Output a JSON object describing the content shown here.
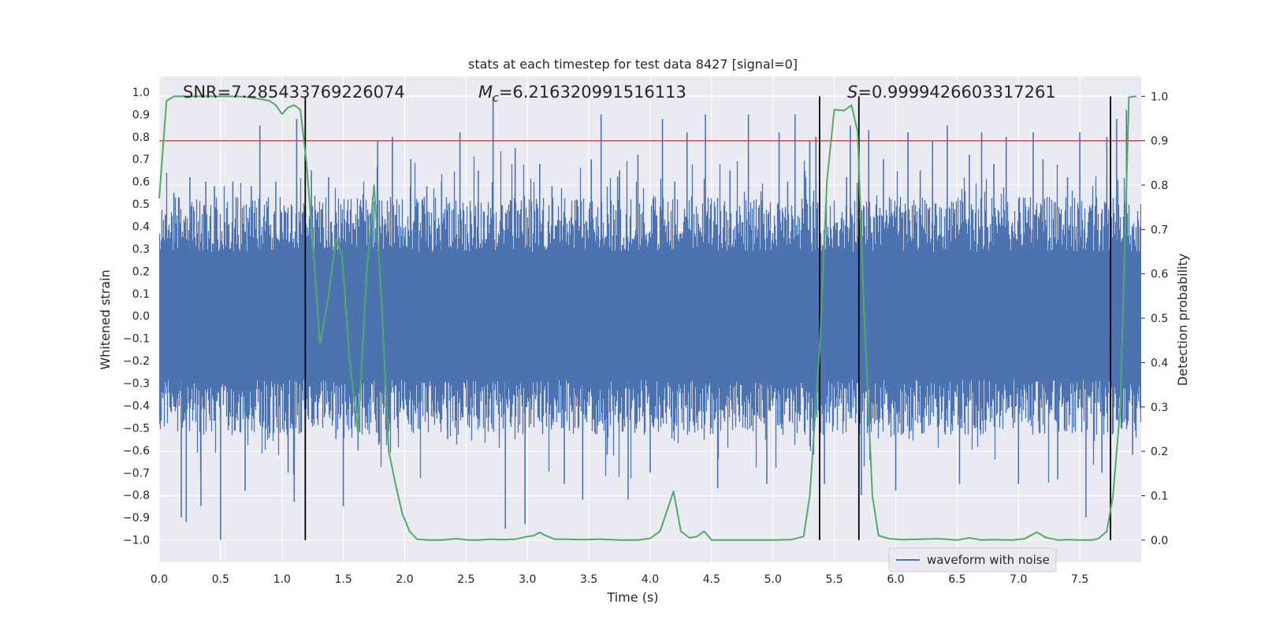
{
  "chart_data": {
    "type": "line",
    "title": "stats at each timestep for test data 8427 [signal=0]",
    "xlabel": "Time (s)",
    "ylabel_left": "Whitened strain",
    "ylabel_right": "Detection probability",
    "xlim": [
      0.0,
      8.0
    ],
    "ylim_left": [
      -1.1,
      1.07
    ],
    "ylim_right": [
      -0.05,
      1.045
    ],
    "xticks": [
      "0.0",
      "0.5",
      "1.0",
      "1.5",
      "2.0",
      "2.5",
      "3.0",
      "3.5",
      "4.0",
      "4.5",
      "5.0",
      "5.5",
      "6.0",
      "6.5",
      "7.0",
      "7.5"
    ],
    "yticks_left": [
      "1.0",
      "0.9",
      "0.8",
      "0.7",
      "0.6",
      "0.5",
      "0.4",
      "0.3",
      "0.2",
      "0.1",
      "0.0",
      "-0.1",
      "-0.2",
      "-0.3",
      "-0.4",
      "-0.5",
      "-0.6",
      "-0.7",
      "-0.8",
      "-0.9",
      "-1.0"
    ],
    "yticks_right": [
      "1.0",
      "0.9",
      "0.8",
      "0.7",
      "0.6",
      "0.5",
      "0.4",
      "0.3",
      "0.2",
      "0.1",
      "0.0"
    ],
    "grid": true,
    "annotations": {
      "snr": "SNR=7.285433769226074",
      "mc_symbol": "M",
      "mc_sub": "c",
      "mc_value": "=6.216320991516113",
      "s_symbol": "S",
      "s_value": "=0.9999426603317261"
    },
    "legend": {
      "label": "waveform with noise",
      "location": "lower-right"
    },
    "waveform": {
      "name": "waveform with noise",
      "color": "#4c72b0",
      "duration": 8.0,
      "core_amplitude": 0.38,
      "spikes": [
        {
          "t": 0.05,
          "v": 0.45
        },
        {
          "t": 0.12,
          "v": 0.55
        },
        {
          "t": 0.18,
          "v": -0.9
        },
        {
          "t": 0.22,
          "v": -0.92
        },
        {
          "t": 0.25,
          "v": 0.62
        },
        {
          "t": 0.34,
          "v": -0.85
        },
        {
          "t": 0.38,
          "v": 0.6
        },
        {
          "t": 0.45,
          "v": 0.58
        },
        {
          "t": 0.5,
          "v": -1.0
        },
        {
          "t": 0.6,
          "v": 0.6
        },
        {
          "t": 0.7,
          "v": -0.78
        },
        {
          "t": 0.75,
          "v": 0.58
        },
        {
          "t": 0.82,
          "v": 0.85
        },
        {
          "t": 0.95,
          "v": 0.6
        },
        {
          "t": 1.05,
          "v": -0.7
        },
        {
          "t": 1.1,
          "v": -0.83
        },
        {
          "t": 1.12,
          "v": 0.88
        },
        {
          "t": 1.24,
          "v": 0.65
        },
        {
          "t": 1.38,
          "v": 0.62
        },
        {
          "t": 1.44,
          "v": -0.55
        },
        {
          "t": 1.5,
          "v": -0.85
        },
        {
          "t": 1.62,
          "v": -0.6
        },
        {
          "t": 1.78,
          "v": 0.78
        },
        {
          "t": 1.9,
          "v": 0.8
        },
        {
          "t": 2.05,
          "v": 0.7
        },
        {
          "t": 2.18,
          "v": 0.58
        },
        {
          "t": 2.3,
          "v": 0.6
        },
        {
          "t": 2.35,
          "v": -0.55
        },
        {
          "t": 2.45,
          "v": 0.82
        },
        {
          "t": 2.6,
          "v": 0.65
        },
        {
          "t": 2.72,
          "v": 0.98
        },
        {
          "t": 2.82,
          "v": -0.95
        },
        {
          "t": 2.9,
          "v": 0.75
        },
        {
          "t": 2.98,
          "v": -0.93
        },
        {
          "t": 3.1,
          "v": 0.68
        },
        {
          "t": 3.2,
          "v": 0.58
        },
        {
          "t": 3.3,
          "v": -0.75
        },
        {
          "t": 3.45,
          "v": -0.82
        },
        {
          "t": 3.52,
          "v": 0.7
        },
        {
          "t": 3.6,
          "v": 0.9
        },
        {
          "t": 3.65,
          "v": -0.62
        },
        {
          "t": 3.75,
          "v": 0.65
        },
        {
          "t": 3.82,
          "v": -0.82
        },
        {
          "t": 3.9,
          "v": 0.72
        },
        {
          "t": 4.0,
          "v": -0.7
        },
        {
          "t": 4.1,
          "v": 0.88
        },
        {
          "t": 4.2,
          "v": 0.6
        },
        {
          "t": 4.3,
          "v": 0.82
        },
        {
          "t": 4.45,
          "v": 0.9
        },
        {
          "t": 4.55,
          "v": -0.77
        },
        {
          "t": 4.65,
          "v": 0.65
        },
        {
          "t": 4.8,
          "v": 0.9
        },
        {
          "t": 4.95,
          "v": -0.75
        },
        {
          "t": 5.05,
          "v": 0.82
        },
        {
          "t": 5.12,
          "v": 0.6
        },
        {
          "t": 5.18,
          "v": 0.9
        },
        {
          "t": 5.3,
          "v": 0.78
        },
        {
          "t": 5.35,
          "v": 0.8
        },
        {
          "t": 5.42,
          "v": -0.75
        },
        {
          "t": 5.6,
          "v": 0.62
        },
        {
          "t": 5.63,
          "v": 0.85
        },
        {
          "t": 5.72,
          "v": -0.8
        },
        {
          "t": 5.78,
          "v": 0.83
        },
        {
          "t": 5.9,
          "v": 0.7
        },
        {
          "t": 6.0,
          "v": -0.78
        },
        {
          "t": 6.1,
          "v": 0.82
        },
        {
          "t": 6.2,
          "v": 0.65
        },
        {
          "t": 6.3,
          "v": 0.78
        },
        {
          "t": 6.42,
          "v": 0.85
        },
        {
          "t": 6.52,
          "v": -0.75
        },
        {
          "t": 6.6,
          "v": 0.72
        },
        {
          "t": 6.7,
          "v": 0.82
        },
        {
          "t": 6.8,
          "v": 0.68
        },
        {
          "t": 6.9,
          "v": 0.8
        },
        {
          "t": 7.0,
          "v": -0.75
        },
        {
          "t": 7.12,
          "v": 0.82
        },
        {
          "t": 7.2,
          "v": 0.7
        },
        {
          "t": 7.32,
          "v": -0.73
        },
        {
          "t": 7.4,
          "v": 0.62
        },
        {
          "t": 7.5,
          "v": 0.82
        },
        {
          "t": 7.55,
          "v": -0.9
        },
        {
          "t": 7.68,
          "v": -0.7
        },
        {
          "t": 7.72,
          "v": 0.8
        },
        {
          "t": 7.8,
          "v": 0.88
        },
        {
          "t": 7.88,
          "v": 0.92
        },
        {
          "t": 7.93,
          "v": -0.62
        }
      ]
    },
    "detection_probability": {
      "name": "Detection probability",
      "color": "#55a868",
      "x": [
        0.0,
        0.06,
        0.12,
        0.2,
        0.3,
        0.4,
        0.5,
        0.6,
        0.7,
        0.8,
        0.9,
        0.95,
        1.0,
        1.05,
        1.1,
        1.15,
        1.2,
        1.27,
        1.31,
        1.38,
        1.44,
        1.49,
        1.55,
        1.62,
        1.69,
        1.75,
        1.81,
        1.87,
        1.93,
        1.98,
        2.04,
        2.1,
        2.2,
        2.3,
        2.42,
        2.52,
        2.6,
        2.7,
        2.8,
        2.9,
        3.0,
        3.05,
        3.1,
        3.15,
        3.22,
        3.3,
        3.45,
        3.6,
        3.75,
        3.9,
        4.0,
        4.08,
        4.13,
        4.19,
        4.25,
        4.32,
        4.38,
        4.44,
        4.5,
        4.6,
        4.8,
        5.0,
        5.15,
        5.25,
        5.3,
        5.38,
        5.44,
        5.5,
        5.58,
        5.64,
        5.69,
        5.74,
        5.81,
        5.86,
        5.95,
        6.05,
        6.2,
        6.35,
        6.5,
        6.6,
        6.7,
        6.8,
        6.95,
        7.05,
        7.15,
        7.22,
        7.32,
        7.4,
        7.5,
        7.6,
        7.65,
        7.72,
        7.77,
        7.83,
        7.9,
        7.96
      ],
      "y": [
        0.77,
        0.99,
        1.0,
        1.0,
        1.0,
        1.0,
        1.0,
        1.0,
        0.999,
        0.995,
        0.99,
        0.98,
        0.96,
        0.975,
        0.98,
        0.97,
        0.85,
        0.6,
        0.44,
        0.55,
        0.68,
        0.64,
        0.41,
        0.24,
        0.6,
        0.8,
        0.55,
        0.2,
        0.12,
        0.06,
        0.02,
        0.002,
        0.0,
        0.0,
        0.003,
        0.0,
        0.0,
        0.002,
        0.001,
        0.002,
        0.008,
        0.01,
        0.017,
        0.01,
        0.002,
        0.002,
        0.001,
        0.002,
        0.0,
        0.0,
        0.004,
        0.02,
        0.06,
        0.11,
        0.02,
        0.005,
        0.008,
        0.02,
        0.0,
        0.0,
        0.0,
        0.0,
        0.001,
        0.008,
        0.1,
        0.43,
        0.81,
        0.97,
        0.968,
        0.98,
        0.92,
        0.53,
        0.1,
        0.01,
        0.003,
        0.001,
        0.002,
        0.003,
        0.0,
        0.005,
        0.0,
        0.001,
        0.0,
        0.003,
        0.018,
        0.006,
        0.0,
        0.001,
        0.0,
        0.0,
        0.003,
        0.02,
        0.1,
        0.3,
        0.998,
        1.0
      ]
    },
    "threshold": {
      "value": 0.9,
      "color": "#c44e52"
    },
    "event_markers": {
      "x": [
        1.19,
        5.38,
        5.7,
        7.75
      ],
      "color": "#000000"
    }
  }
}
